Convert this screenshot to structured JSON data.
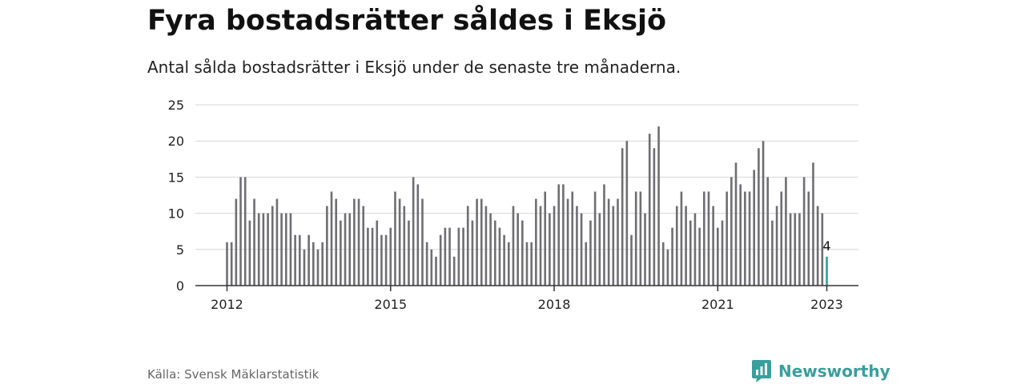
{
  "header": {
    "title": "Fyra bostadsrätter såldes i Eksjö",
    "subtitle": "Antal sålda bostadsrätter i Eksjö under de senaste tre månaderna."
  },
  "footer": {
    "source": "Källa: Svensk Mäklarstatistik",
    "brand": "Newsworthy",
    "brand_icon": "bar-chart-logo-icon"
  },
  "colors": {
    "bar": "#6e6e73",
    "highlight": "#2aa39a",
    "grid": "#d6d6d6",
    "axis": "#333333",
    "brand": "#3a9f9c"
  },
  "chart_data": {
    "type": "bar",
    "title": "Fyra bostadsrätter såldes i Eksjö",
    "subtitle": "Antal sålda bostadsrätter i Eksjö under de senaste tre månaderna.",
    "xlabel": "",
    "ylabel": "",
    "ylim": [
      0,
      25
    ],
    "yticks": [
      0,
      5,
      10,
      15,
      20,
      25
    ],
    "grid": true,
    "legend": "none",
    "x_start": "2012-01",
    "x_end": "2023-01",
    "xtick_labels": [
      "2012",
      "2015",
      "2018",
      "2021",
      "2023"
    ],
    "xtick_months": [
      "2012-01",
      "2015-01",
      "2018-01",
      "2021-01",
      "2023-01"
    ],
    "values": [
      6,
      6,
      12,
      15,
      15,
      9,
      12,
      10,
      10,
      10,
      11,
      12,
      10,
      10,
      10,
      7,
      7,
      5,
      7,
      6,
      5,
      6,
      11,
      13,
      12,
      9,
      10,
      10,
      12,
      12,
      11,
      8,
      8,
      9,
      7,
      7,
      8,
      13,
      12,
      11,
      9,
      15,
      14,
      12,
      6,
      5,
      4,
      7,
      8,
      8,
      4,
      8,
      8,
      11,
      9,
      12,
      12,
      11,
      10,
      9,
      8,
      7,
      6,
      11,
      10,
      9,
      6,
      6,
      12,
      11,
      13,
      10,
      11,
      14,
      14,
      12,
      13,
      11,
      10,
      6,
      9,
      13,
      10,
      14,
      12,
      11,
      12,
      19,
      20,
      7,
      13,
      13,
      10,
      21,
      19,
      22,
      6,
      5,
      8,
      11,
      13,
      11,
      9,
      10,
      8,
      13,
      13,
      11,
      8,
      9,
      13,
      15,
      17,
      14,
      13,
      13,
      16,
      19,
      20,
      15,
      9,
      11,
      13,
      15,
      10,
      10,
      10,
      15,
      13,
      17,
      11,
      10,
      4
    ],
    "highlight_value": 4,
    "highlight_label": "4"
  }
}
